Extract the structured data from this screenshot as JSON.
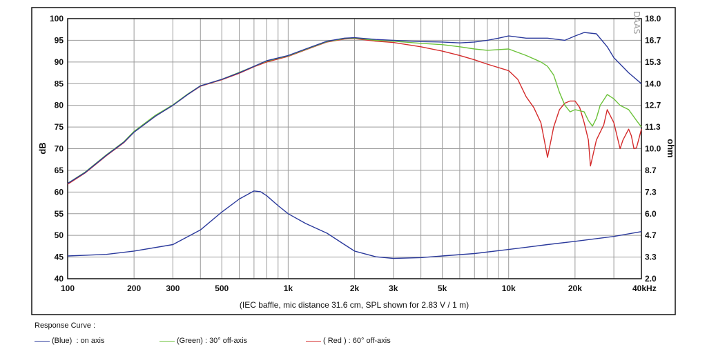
{
  "chart_data": {
    "type": "line",
    "xscale": "log",
    "xlim": [
      100,
      40000
    ],
    "ylim_left": [
      40,
      100
    ],
    "ylim_right": [
      2.0,
      18.0
    ],
    "ylabel_left": "dB",
    "ylabel_right": "ohm",
    "x_unit": "kHz",
    "grid": true,
    "x_tick_labels": [
      {
        "v": 100,
        "t": "100"
      },
      {
        "v": 200,
        "t": "200"
      },
      {
        "v": 300,
        "t": "300"
      },
      {
        "v": 500,
        "t": "500"
      },
      {
        "v": 1000,
        "t": "1k"
      },
      {
        "v": 2000,
        "t": "2k"
      },
      {
        "v": 3000,
        "t": "3k"
      },
      {
        "v": 5000,
        "t": "5k"
      },
      {
        "v": 10000,
        "t": "10k"
      },
      {
        "v": 20000,
        "t": "20k"
      },
      {
        "v": 40000,
        "t": "40kHz"
      }
    ],
    "y_ticks_left": [
      "40",
      "45",
      "50",
      "55",
      "60",
      "65",
      "70",
      "75",
      "80",
      "85",
      "90",
      "95",
      "100"
    ],
    "y_ticks_right": [
      "2.0",
      "3.3",
      "4.7",
      "6.0",
      "7.3",
      "8.7",
      "10.0",
      "11.3",
      "12.7",
      "14.0",
      "15.3",
      "16.7",
      "18.0"
    ],
    "annotation": "(IEC baffle, mic distance 31.6 cm, SPL shown for 2.83 V / 1 m)",
    "watermark": "DAAS",
    "colors": {
      "blue": "#2b3a9c",
      "green": "#6cc23a",
      "red": "#d42b2b",
      "grid": "#9a9a9a",
      "frame": "#111111"
    },
    "series": [
      {
        "name": "(Blue) : on axis",
        "color": "#2b3a9c",
        "axis": "left",
        "points": [
          [
            100,
            62
          ],
          [
            120,
            64.5
          ],
          [
            150,
            68.5
          ],
          [
            180,
            71.5
          ],
          [
            200,
            73.8
          ],
          [
            250,
            77.5
          ],
          [
            300,
            80
          ],
          [
            350,
            82.5
          ],
          [
            400,
            84.5
          ],
          [
            500,
            86
          ],
          [
            600,
            87.5
          ],
          [
            700,
            89
          ],
          [
            800,
            90.3
          ],
          [
            1000,
            91.5
          ],
          [
            1200,
            93
          ],
          [
            1500,
            94.8
          ],
          [
            1800,
            95.5
          ],
          [
            2000,
            95.6
          ],
          [
            2500,
            95.2
          ],
          [
            3000,
            95
          ],
          [
            4000,
            94.7
          ],
          [
            5000,
            94.6
          ],
          [
            6000,
            94.4
          ],
          [
            7000,
            94.6
          ],
          [
            8000,
            95
          ],
          [
            9000,
            95.5
          ],
          [
            10000,
            96
          ],
          [
            12000,
            95.5
          ],
          [
            15000,
            95.5
          ],
          [
            18000,
            95
          ],
          [
            20000,
            96
          ],
          [
            22000,
            96.8
          ],
          [
            25000,
            96.5
          ],
          [
            28000,
            93.5
          ],
          [
            30000,
            91
          ],
          [
            35000,
            87.5
          ],
          [
            40000,
            85
          ]
        ]
      },
      {
        "name": "(Green) : 30° off-axis",
        "color": "#6cc23a",
        "axis": "left",
        "points": [
          [
            100,
            62
          ],
          [
            120,
            64.6
          ],
          [
            150,
            68.6
          ],
          [
            180,
            71.6
          ],
          [
            200,
            74
          ],
          [
            250,
            77.7
          ],
          [
            300,
            80.1
          ],
          [
            350,
            82.6
          ],
          [
            400,
            84.5
          ],
          [
            500,
            86
          ],
          [
            600,
            87.6
          ],
          [
            700,
            89
          ],
          [
            800,
            90.2
          ],
          [
            1000,
            91.4
          ],
          [
            1200,
            92.9
          ],
          [
            1500,
            94.7
          ],
          [
            1800,
            95.4
          ],
          [
            2000,
            95.5
          ],
          [
            2500,
            95
          ],
          [
            3000,
            94.8
          ],
          [
            4000,
            94.3
          ],
          [
            5000,
            94
          ],
          [
            6000,
            93.5
          ],
          [
            7000,
            93
          ],
          [
            8000,
            92.7
          ],
          [
            10000,
            93
          ],
          [
            12000,
            91.5
          ],
          [
            14000,
            90
          ],
          [
            15000,
            89
          ],
          [
            16000,
            87
          ],
          [
            17000,
            83
          ],
          [
            18000,
            80
          ],
          [
            19000,
            78.5
          ],
          [
            20000,
            79
          ],
          [
            22000,
            78.5
          ],
          [
            23000,
            76.5
          ],
          [
            24000,
            75.2
          ],
          [
            25000,
            77
          ],
          [
            26000,
            80
          ],
          [
            28000,
            82.5
          ],
          [
            30000,
            81.5
          ],
          [
            32000,
            80
          ],
          [
            35000,
            79
          ],
          [
            38000,
            76.5
          ],
          [
            40000,
            75
          ]
        ]
      },
      {
        "name": "( Red ) : 60° off-axis",
        "color": "#d42b2b",
        "axis": "left",
        "points": [
          [
            100,
            61.8
          ],
          [
            120,
            64.4
          ],
          [
            150,
            68.4
          ],
          [
            180,
            71.4
          ],
          [
            200,
            73.8
          ],
          [
            250,
            77.5
          ],
          [
            300,
            80
          ],
          [
            350,
            82.5
          ],
          [
            400,
            84.4
          ],
          [
            500,
            85.9
          ],
          [
            600,
            87.4
          ],
          [
            700,
            88.9
          ],
          [
            800,
            90
          ],
          [
            1000,
            91.3
          ],
          [
            1200,
            92.8
          ],
          [
            1500,
            94.6
          ],
          [
            1800,
            95.3
          ],
          [
            2000,
            95.4
          ],
          [
            2500,
            94.8
          ],
          [
            3000,
            94.5
          ],
          [
            4000,
            93.5
          ],
          [
            5000,
            92.5
          ],
          [
            6000,
            91.5
          ],
          [
            7000,
            90.5
          ],
          [
            8000,
            89.5
          ],
          [
            10000,
            88
          ],
          [
            11000,
            86
          ],
          [
            12000,
            82
          ],
          [
            13000,
            79.5
          ],
          [
            14000,
            76
          ],
          [
            14500,
            72
          ],
          [
            15000,
            68
          ],
          [
            15500,
            71.5
          ],
          [
            16000,
            75
          ],
          [
            17000,
            79
          ],
          [
            18000,
            80.5
          ],
          [
            19000,
            81
          ],
          [
            20000,
            81
          ],
          [
            21000,
            79.5
          ],
          [
            22000,
            76
          ],
          [
            23000,
            72
          ],
          [
            23500,
            66
          ],
          [
            24000,
            68
          ],
          [
            25000,
            72
          ],
          [
            27000,
            75.5
          ],
          [
            28000,
            79
          ],
          [
            30000,
            76
          ],
          [
            32000,
            70
          ],
          [
            33000,
            72
          ],
          [
            35000,
            74.5
          ],
          [
            36000,
            73
          ],
          [
            37000,
            70
          ],
          [
            38000,
            70.2
          ],
          [
            40000,
            74.5
          ]
        ]
      },
      {
        "name": "impedance",
        "color": "#2b3a9c",
        "axis": "right",
        "points": [
          [
            100,
            3.4
          ],
          [
            150,
            3.5
          ],
          [
            200,
            3.7
          ],
          [
            300,
            4.1
          ],
          [
            400,
            5
          ],
          [
            500,
            6.1
          ],
          [
            600,
            6.9
          ],
          [
            700,
            7.4
          ],
          [
            750,
            7.35
          ],
          [
            800,
            7.1
          ],
          [
            900,
            6.5
          ],
          [
            1000,
            6.0
          ],
          [
            1200,
            5.4
          ],
          [
            1500,
            4.8
          ],
          [
            1800,
            4.1
          ],
          [
            2000,
            3.7
          ],
          [
            2500,
            3.35
          ],
          [
            3000,
            3.25
          ],
          [
            4000,
            3.3
          ],
          [
            5000,
            3.4
          ],
          [
            7000,
            3.55
          ],
          [
            10000,
            3.8
          ],
          [
            15000,
            4.1
          ],
          [
            20000,
            4.3
          ],
          [
            30000,
            4.6
          ],
          [
            40000,
            4.9
          ]
        ]
      }
    ]
  },
  "legend": {
    "title": "Response Curve :",
    "entries": [
      {
        "label": "(Blue)  : on axis",
        "color": "#2b3a9c"
      },
      {
        "label": "(Green) : 30° off-axis",
        "color": "#6cc23a"
      },
      {
        "label": "( Red ) : 60° off-axis",
        "color": "#d42b2b"
      }
    ]
  }
}
